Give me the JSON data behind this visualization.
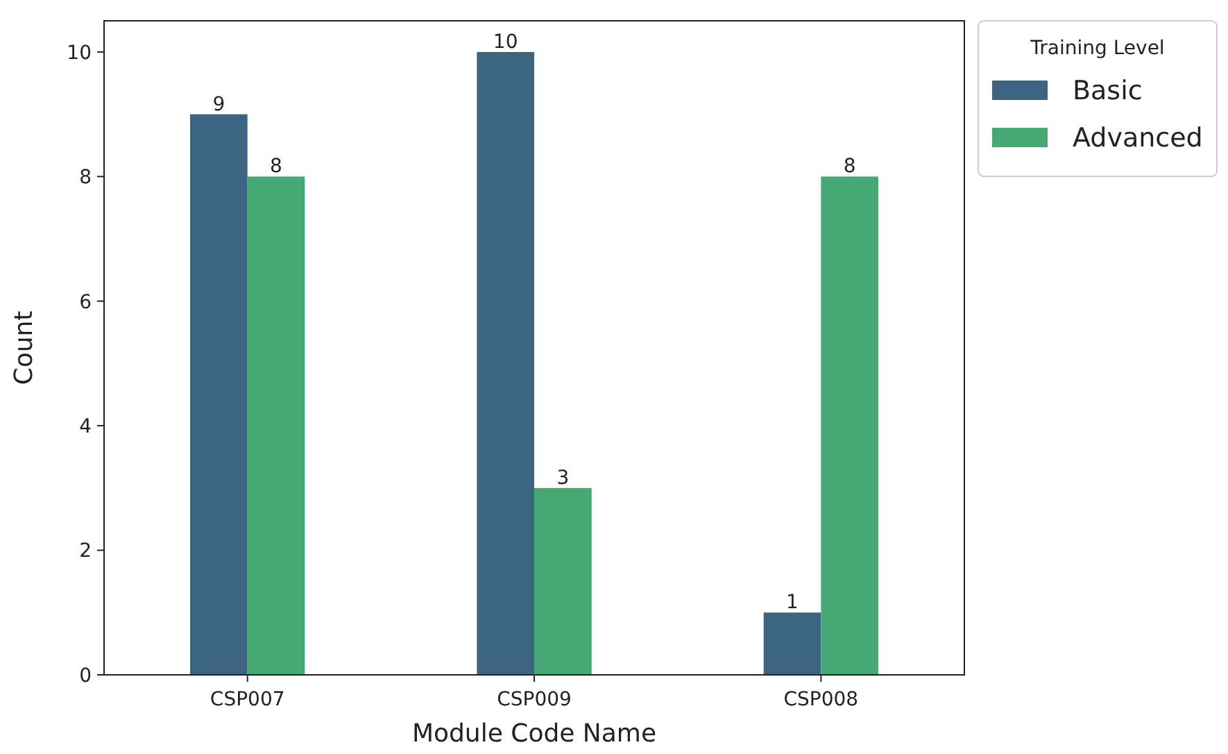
{
  "chart_data": {
    "type": "bar",
    "xlabel": "Module Code Name",
    "ylabel": "Count",
    "legend_title": "Training Level",
    "categories": [
      "CSP007",
      "CSP009",
      "CSP008"
    ],
    "series": [
      {
        "name": "Basic",
        "color": "#3d6480",
        "values": [
          9,
          10,
          1
        ]
      },
      {
        "name": "Advanced",
        "color": "#45a875",
        "values": [
          8,
          3,
          8
        ]
      }
    ],
    "ylim": [
      0,
      10.5
    ],
    "yticks": [
      0,
      2,
      4,
      6,
      8,
      10
    ],
    "data_labels": true,
    "legend": "top right",
    "grid": false
  }
}
